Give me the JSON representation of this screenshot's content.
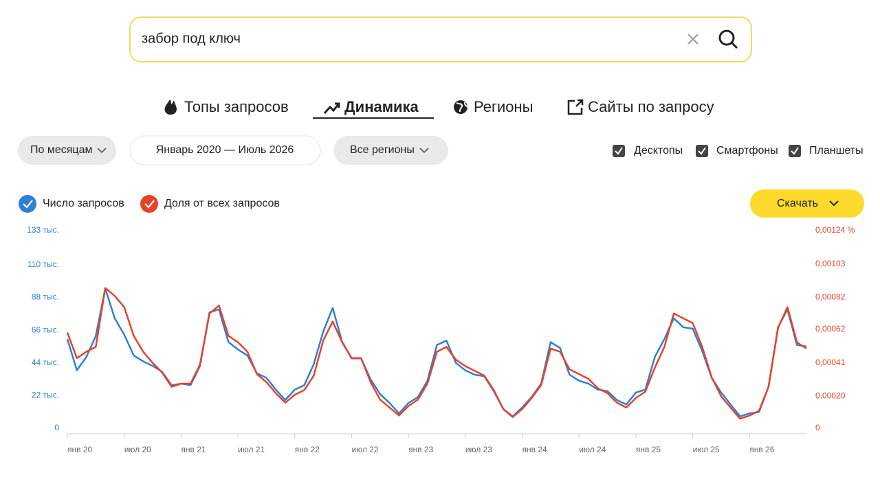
{
  "search": {
    "query": "забор под ключ"
  },
  "tabs": [
    "Топы запросов",
    "Динамика",
    "Регионы",
    "Сайты по запросу"
  ],
  "filters": {
    "period_type": "По месяцам",
    "range": "Январь 2020 — Июль 2026",
    "region": "Все регионы"
  },
  "devices": [
    "Десктопы",
    "Смартфоны",
    "Планшеты"
  ],
  "download": "Скачать",
  "chart_data": {
    "type": "line",
    "categories": [
      "янв 20",
      null,
      null,
      null,
      null,
      null,
      "июл 20",
      null,
      null,
      null,
      null,
      null,
      "янв 21",
      null,
      null,
      null,
      null,
      null,
      "июл 21",
      null,
      null,
      null,
      null,
      null,
      "янв 22",
      null,
      null,
      null,
      null,
      null,
      "июл 22",
      null,
      null,
      null,
      null,
      null,
      "янв 23",
      null,
      null,
      null,
      null,
      null,
      "июл 23",
      null,
      null,
      null,
      null,
      null,
      "янв 24",
      null,
      null,
      null,
      null,
      null,
      "июл 24",
      null,
      null,
      null,
      null,
      null,
      "янв 25",
      null,
      null,
      null,
      null,
      null,
      "июл 25",
      null,
      null,
      null,
      null,
      null,
      "янв 26",
      null,
      null,
      null,
      null,
      null,
      null
    ],
    "series": [
      {
        "name": "Число запросов",
        "color": "#2e7fd6",
        "axis": "y",
        "values": [
          60000,
          39000,
          48000,
          62000,
          94000,
          74000,
          63000,
          49000,
          45000,
          42000,
          38000,
          29000,
          30000,
          29000,
          42000,
          78000,
          80000,
          58000,
          53000,
          49000,
          37000,
          34000,
          26000,
          19000,
          26000,
          29000,
          43000,
          65000,
          81000,
          58000,
          47000,
          47000,
          33000,
          23000,
          17000,
          10000,
          17000,
          21000,
          32000,
          56000,
          59000,
          44000,
          39000,
          36000,
          35000,
          25000,
          13000,
          8000,
          14000,
          21000,
          30000,
          58000,
          54000,
          36000,
          32000,
          30000,
          26000,
          25000,
          19000,
          16000,
          24000,
          26000,
          48000,
          60000,
          74000,
          68000,
          67000,
          52000,
          34000,
          24000,
          16000,
          8000,
          10000,
          11000,
          28000,
          68000,
          80000,
          56000,
          55000
        ]
      },
      {
        "name": "Доля от всех запросов",
        "color": "#e8422a",
        "axis": "y2",
        "values": [
          0.0006,
          0.00044,
          0.00048,
          0.00051,
          0.00088,
          0.00083,
          0.00076,
          0.00058,
          0.00048,
          0.00041,
          0.00035,
          0.00026,
          0.00028,
          0.00028,
          0.0004,
          0.00072,
          0.00077,
          0.00058,
          0.00054,
          0.00048,
          0.00034,
          0.00029,
          0.00022,
          0.00016,
          0.00021,
          0.00024,
          0.00033,
          0.00055,
          0.00067,
          0.00054,
          0.00044,
          0.00044,
          0.00029,
          0.00018,
          0.00013,
          8e-05,
          0.00014,
          0.00018,
          0.00028,
          0.00048,
          0.00051,
          0.00043,
          0.00039,
          0.00036,
          0.00033,
          0.00024,
          0.00012,
          7e-05,
          0.00012,
          0.00019,
          0.00027,
          0.0005,
          0.00048,
          0.00037,
          0.00034,
          0.00031,
          0.00025,
          0.00022,
          0.00016,
          0.00013,
          0.00019,
          0.00023,
          0.00038,
          0.00051,
          0.00072,
          0.00069,
          0.00066,
          0.00051,
          0.00032,
          0.0002,
          0.00013,
          6e-05,
          8e-05,
          0.00011,
          0.00026,
          0.00063,
          0.00076,
          0.00054,
          0.0005
        ]
      }
    ],
    "ylim": [
      0,
      133000
    ],
    "yticks": [
      0,
      {
        "value": 22000,
        "label": "22 тыс."
      },
      {
        "value": 44000,
        "label": "44 тыс."
      },
      {
        "value": 66000,
        "label": "66 тыс."
      },
      {
        "value": 88000,
        "label": "88 тыс."
      },
      {
        "value": 110000,
        "label": "110 тыс."
      },
      {
        "value": 133000,
        "label": "133 тыс."
      }
    ],
    "y2lim": [
      0,
      0.00124
    ],
    "y2ticks": [
      0,
      {
        "value": 0.0002,
        "label": "0,00020"
      },
      {
        "value": 0.00041,
        "label": "0,00041"
      },
      {
        "value": 0.00062,
        "label": "0,00062"
      },
      {
        "value": 0.00082,
        "label": "0,00082"
      },
      {
        "value": 0.00103,
        "label": "0,00103"
      },
      {
        "value": 0.00124,
        "label": "0,00124 %"
      }
    ]
  }
}
